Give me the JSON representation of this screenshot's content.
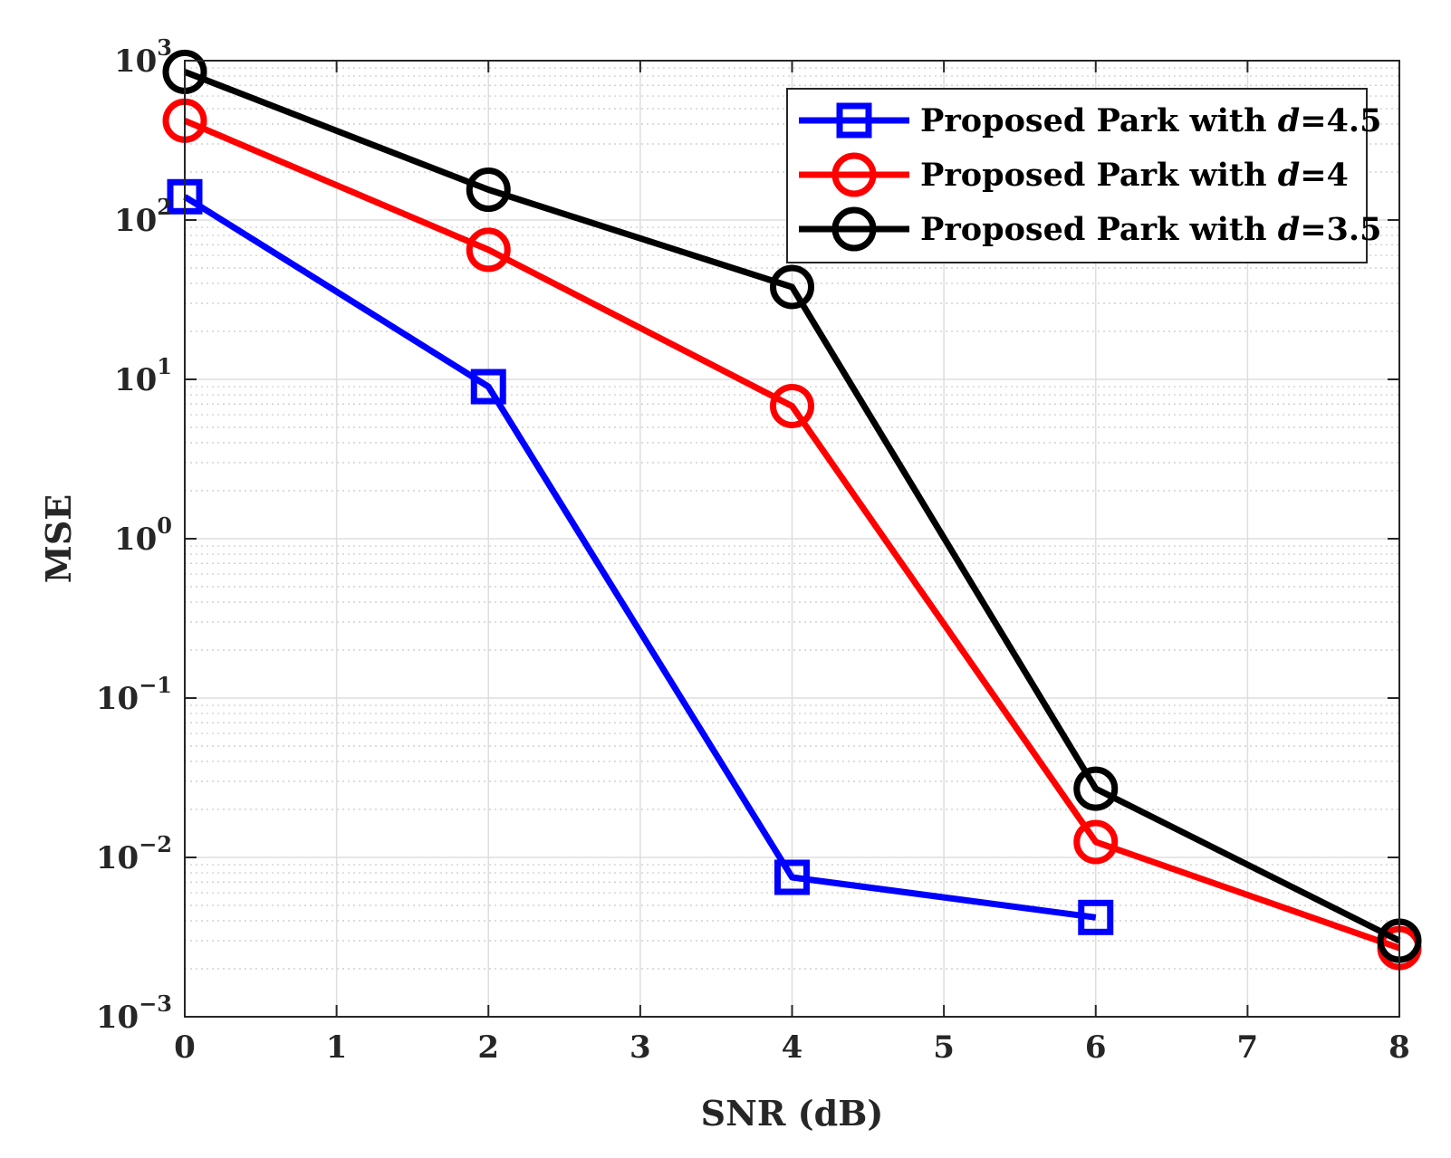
{
  "chart_data": {
    "type": "line",
    "xlabel": "SNR (dB)",
    "ylabel": "MSE",
    "xlim": [
      0,
      8
    ],
    "ylim": [
      0.001,
      1000
    ],
    "y_scale": "log",
    "x_ticks": [
      0,
      1,
      2,
      3,
      4,
      5,
      6,
      7,
      8
    ],
    "x_tick_labels": [
      "0",
      "1",
      "2",
      "3",
      "4",
      "5",
      "6",
      "7",
      "8"
    ],
    "y_ticks": [
      0.001,
      0.01,
      0.1,
      1,
      10,
      100,
      1000
    ],
    "y_tick_labels": [
      {
        "base": "10",
        "exp": "−3"
      },
      {
        "base": "10",
        "exp": "−2"
      },
      {
        "base": "10",
        "exp": "−1"
      },
      {
        "base": "10",
        "exp": "0"
      },
      {
        "base": "10",
        "exp": "1"
      },
      {
        "base": "10",
        "exp": "2"
      },
      {
        "base": "10",
        "exp": "3"
      }
    ],
    "grid": true,
    "minor_grid": true,
    "legend_position": "top-right",
    "series": [
      {
        "name": "Proposed Park with d=4.5",
        "legend": {
          "prefix": "Proposed Park with ",
          "var": "d",
          "suffix": "=4.5"
        },
        "color": "#0000ff",
        "marker": "square",
        "x": [
          0,
          2,
          4,
          6
        ],
        "y": [
          140,
          9,
          0.0075,
          0.0042
        ]
      },
      {
        "name": "Proposed Park with d=4",
        "legend": {
          "prefix": "Proposed Park with ",
          "var": "d",
          "suffix": "=4"
        },
        "color": "#ff0000",
        "marker": "circle",
        "x": [
          0,
          2,
          4,
          6,
          8
        ],
        "y": [
          420,
          65,
          6.8,
          0.0125,
          0.0027
        ]
      },
      {
        "name": "Proposed Park with d=3.5",
        "legend": {
          "prefix": "Proposed Park with ",
          "var": "d",
          "suffix": "=3.5"
        },
        "color": "#000000",
        "marker": "circle",
        "x": [
          0,
          2,
          4,
          6,
          8
        ],
        "y": [
          850,
          155,
          38,
          0.027,
          0.003
        ]
      }
    ]
  }
}
